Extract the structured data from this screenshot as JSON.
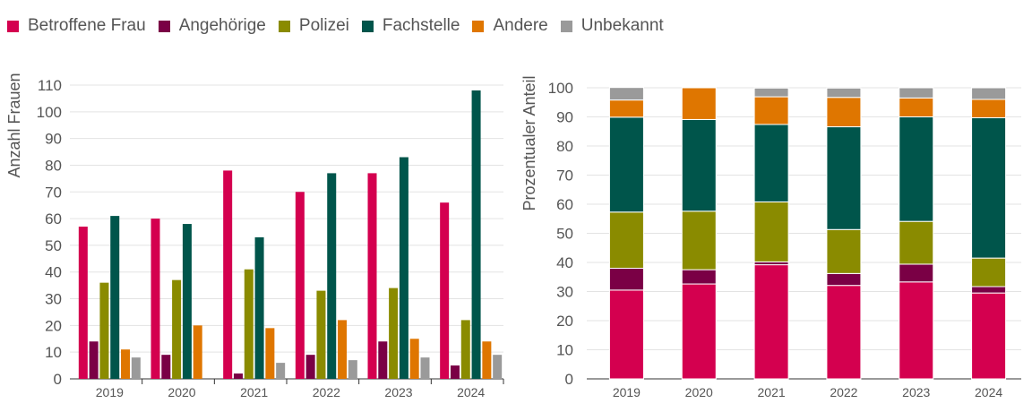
{
  "legend": [
    {
      "label": "Betroffene Frau",
      "color": "#d4004f"
    },
    {
      "label": "Angehörige",
      "color": "#7a0045"
    },
    {
      "label": "Polizei",
      "color": "#8a8b00"
    },
    {
      "label": "Fachstelle",
      "color": "#00554b"
    },
    {
      "label": "Andere",
      "color": "#df7600"
    },
    {
      "label": "Unbekannt",
      "color": "#9a9a9a"
    }
  ],
  "chart_data": [
    {
      "type": "bar",
      "ylabel": "Anzahl Frauen",
      "ylim": [
        0,
        110
      ],
      "yticks": [
        0,
        10,
        20,
        30,
        40,
        50,
        60,
        70,
        80,
        90,
        100,
        110
      ],
      "grid": true,
      "legend": "top",
      "categories": [
        "2019",
        "2020",
        "2021",
        "2022",
        "2023",
        "2024"
      ],
      "series": [
        {
          "name": "Betroffene Frau",
          "values": [
            57,
            60,
            78,
            70,
            77,
            66
          ]
        },
        {
          "name": "Angehörige",
          "values": [
            14,
            9,
            2,
            9,
            14,
            5
          ]
        },
        {
          "name": "Polizei",
          "values": [
            36,
            37,
            41,
            33,
            34,
            22
          ]
        },
        {
          "name": "Fachstelle",
          "values": [
            61,
            58,
            53,
            77,
            83,
            108
          ]
        },
        {
          "name": "Andere",
          "values": [
            11,
            20,
            19,
            22,
            15,
            14
          ]
        },
        {
          "name": "Unbekannt",
          "values": [
            8,
            0,
            6,
            7,
            8,
            9
          ]
        }
      ]
    },
    {
      "type": "bar",
      "stacked": true,
      "ylabel": "Prozentualer Anteil",
      "ylim": [
        0,
        100
      ],
      "yticks": [
        0,
        10,
        20,
        30,
        40,
        50,
        60,
        70,
        80,
        90,
        100
      ],
      "grid": true,
      "categories": [
        "2019",
        "2020",
        "2021",
        "2022",
        "2023",
        "2024"
      ],
      "series": [
        {
          "name": "Betroffene Frau",
          "values": [
            30.5,
            32.6,
            39.2,
            32.1,
            33.3,
            29.5
          ]
        },
        {
          "name": "Angehörige",
          "values": [
            7.5,
            4.9,
            1.0,
            4.1,
            6.1,
            2.2
          ]
        },
        {
          "name": "Polizei",
          "values": [
            19.3,
            20.1,
            20.6,
            15.1,
            14.7,
            9.8
          ]
        },
        {
          "name": "Fachstelle",
          "values": [
            32.6,
            31.5,
            26.6,
            35.3,
            35.9,
            48.2
          ]
        },
        {
          "name": "Andere",
          "values": [
            5.9,
            10.9,
            9.5,
            10.1,
            6.5,
            6.3
          ]
        },
        {
          "name": "Unbekannt",
          "values": [
            4.3,
            0,
            3.0,
            3.2,
            3.5,
            4.0
          ]
        }
      ]
    }
  ]
}
